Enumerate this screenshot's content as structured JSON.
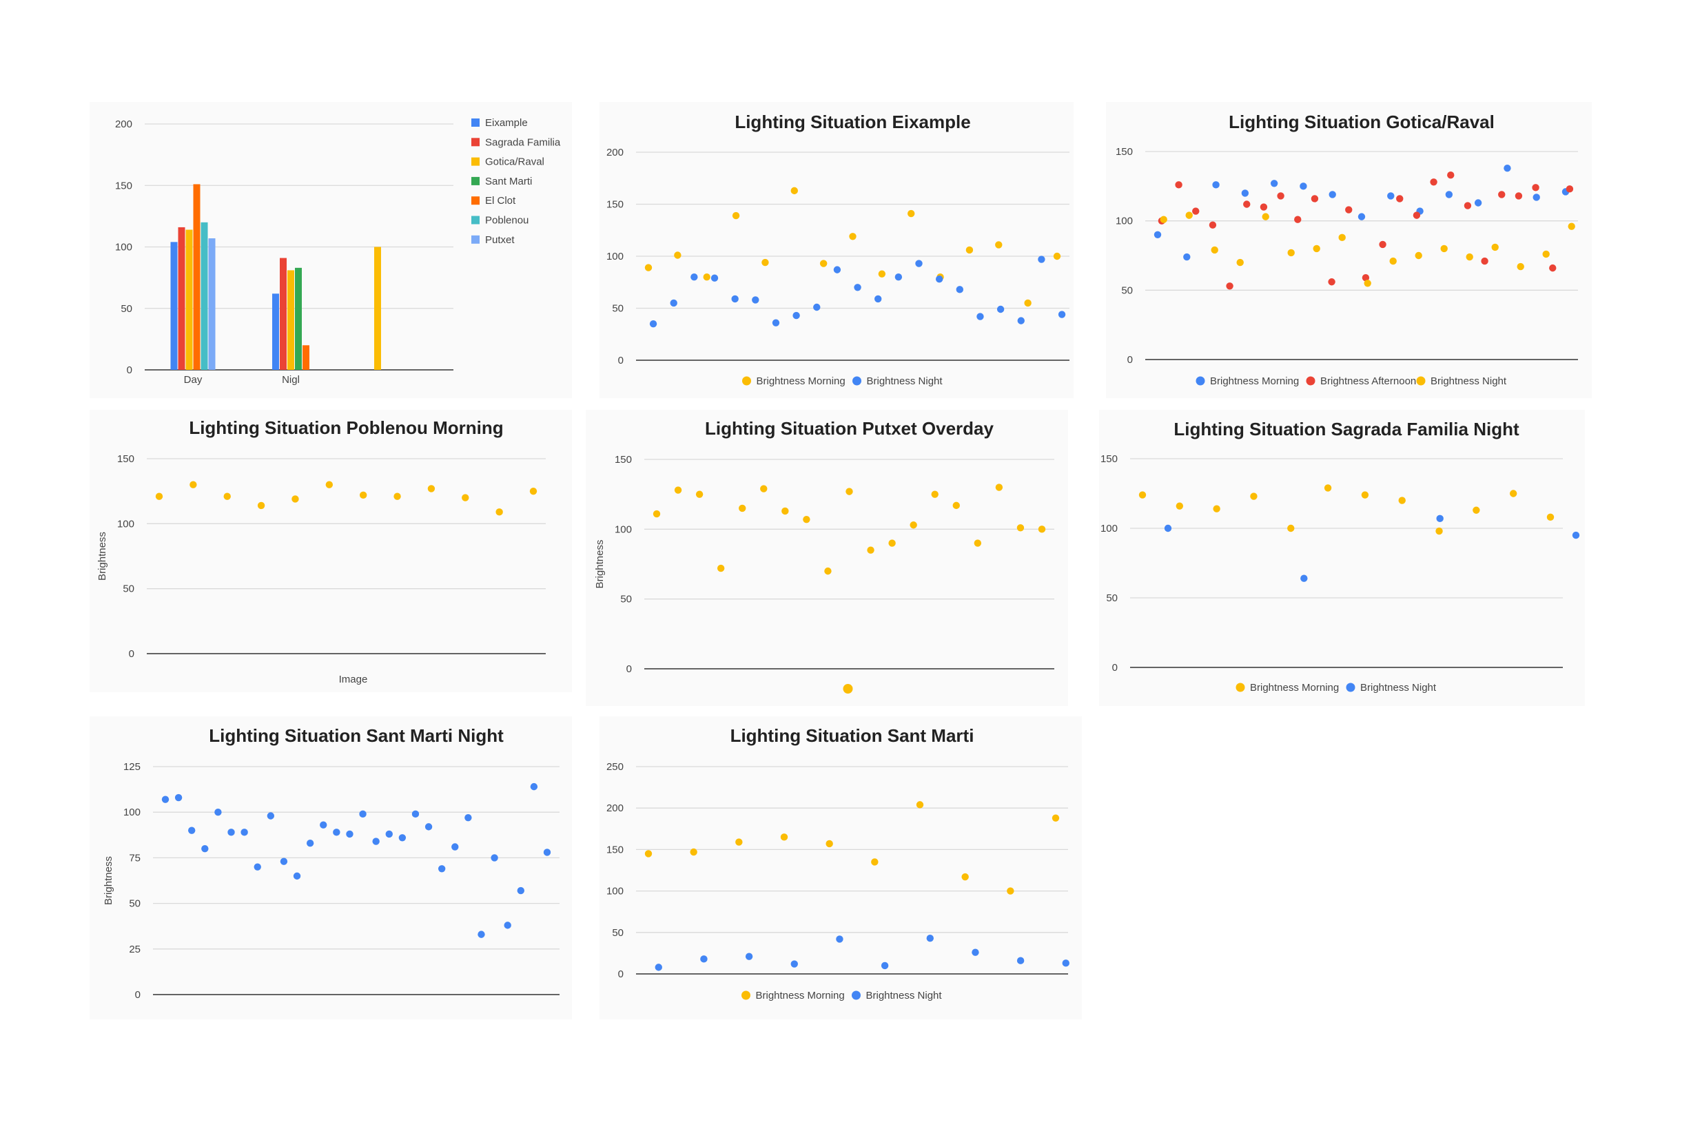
{
  "colors": {
    "blue": "#4285f4",
    "red": "#ea4335",
    "yellow": "#fbbc04",
    "green": "#34a853",
    "orange": "#ff6d01",
    "teal": "#46bdc6",
    "lightblue": "#7baaf7"
  },
  "chart_data": [
    {
      "type": "bar",
      "title": "",
      "categories": [
        "Day",
        "Nigl",
        ""
      ],
      "ylim": [
        0,
        200
      ],
      "yticks": [
        "200",
        "150",
        "100",
        "50",
        "0"
      ],
      "legend_position": "right",
      "grid": true,
      "series": [
        {
          "name": "Eixample",
          "color": "#4285f4",
          "values": [
            104,
            62,
            null
          ]
        },
        {
          "name": "Sagrada Familia",
          "color": "#ea4335",
          "values": [
            116,
            91,
            null
          ]
        },
        {
          "name": "Gotica/Raval",
          "color": "#fbbc04",
          "values": [
            114,
            81,
            100
          ]
        },
        {
          "name": "Sant Marti",
          "color": "#34a853",
          "values": [
            null,
            83,
            null
          ]
        },
        {
          "name": "El Clot",
          "color": "#ff6d01",
          "values": [
            151,
            20,
            null
          ]
        },
        {
          "name": "Poblenou",
          "color": "#46bdc6",
          "values": [
            120,
            null,
            null
          ]
        },
        {
          "name": "Putxet",
          "color": "#7baaf7",
          "values": [
            107,
            null,
            null
          ]
        }
      ]
    },
    {
      "type": "scatter",
      "title": "Lighting Situation Eixample",
      "ylim": [
        0,
        200
      ],
      "yticks": [
        "200",
        "150",
        "100",
        "50",
        "0"
      ],
      "legend_position": "bottom",
      "grid": true,
      "series": [
        {
          "name": "Brightness Morning",
          "color": "#fbbc04",
          "values": [
            89,
            101,
            80,
            139,
            94,
            163,
            93,
            119,
            83,
            141,
            80,
            106,
            111,
            55,
            100
          ]
        },
        {
          "name": "Brightness Night",
          "color": "#4285f4",
          "values": [
            35,
            55,
            80,
            79,
            59,
            58,
            36,
            43,
            51,
            87,
            70,
            59,
            80,
            93,
            78,
            68,
            42,
            49,
            38,
            97,
            44
          ]
        }
      ]
    },
    {
      "type": "scatter",
      "title": "Lighting Situation Gotica/Raval",
      "ylim": [
        0,
        150
      ],
      "yticks": [
        "150",
        "100",
        "50",
        "0"
      ],
      "legend_position": "bottom",
      "grid": true,
      "series": [
        {
          "name": "Brightness Morning",
          "color": "#4285f4",
          "values": [
            90,
            74,
            126,
            120,
            127,
            125,
            119,
            103,
            118,
            107,
            119,
            113,
            138,
            117,
            121
          ]
        },
        {
          "name": "Brightness Afternoon",
          "color": "#ea4335",
          "values": [
            100,
            126,
            107,
            97,
            53,
            112,
            110,
            118,
            101,
            116,
            56,
            108,
            59,
            83,
            116,
            104,
            128,
            133,
            111,
            71,
            119,
            118,
            124,
            66,
            123
          ]
        },
        {
          "name": "Brightness Night",
          "color": "#fbbc04",
          "values": [
            101,
            104,
            79,
            70,
            103,
            77,
            80,
            88,
            55,
            71,
            75,
            80,
            74,
            81,
            67,
            76,
            96
          ]
        }
      ]
    },
    {
      "type": "scatter",
      "title": "Lighting Situation Poblenou Morning",
      "xlabel": "Image",
      "ylabel": "Brightness",
      "ylim": [
        0,
        150
      ],
      "yticks": [
        "150",
        "100",
        "50",
        "0"
      ],
      "legend_position": "none",
      "grid": true,
      "series": [
        {
          "name": "",
          "color": "#fbbc04",
          "values": [
            121,
            130,
            121,
            114,
            119,
            130,
            122,
            121,
            127,
            120,
            109,
            125
          ]
        }
      ]
    },
    {
      "type": "scatter",
      "title": "Lighting Situation Putxet Overday",
      "ylabel": "Brightness",
      "ylim": [
        0,
        150
      ],
      "yticks": [
        "150",
        "100",
        "50",
        "0"
      ],
      "legend_position": "bottom",
      "grid": true,
      "series": [
        {
          "name": "",
          "color": "#fbbc04",
          "values": [
            111,
            128,
            125,
            72,
            115,
            129,
            113,
            107,
            70,
            127,
            85,
            90,
            103,
            125,
            117,
            90,
            130,
            101,
            100
          ]
        }
      ]
    },
    {
      "type": "scatter",
      "title": "Lighting Situation Sagrada Familia Night",
      "ylim": [
        0,
        150
      ],
      "yticks": [
        "150",
        "100",
        "50",
        "0"
      ],
      "legend_position": "bottom",
      "grid": true,
      "series": [
        {
          "name": "Brightness Morning",
          "color": "#fbbc04",
          "values": [
            124,
            116,
            114,
            123,
            100,
            129,
            124,
            120,
            98,
            113,
            125,
            108
          ]
        },
        {
          "name": "Brightness Night",
          "color": "#4285f4",
          "values": [
            100,
            64,
            107,
            95
          ]
        }
      ]
    },
    {
      "type": "scatter",
      "title": "Lighting Situation Sant Marti Night",
      "ylabel": "Brightness",
      "ylim": [
        0,
        125
      ],
      "yticks": [
        "125",
        "100",
        "75",
        "50",
        "25",
        "0"
      ],
      "legend_position": "none",
      "grid": true,
      "series": [
        {
          "name": "",
          "color": "#4285f4",
          "values": [
            107,
            108,
            90,
            80,
            100,
            89,
            89,
            70,
            98,
            73,
            65,
            83,
            93,
            89,
            88,
            99,
            84,
            88,
            86,
            99,
            92,
            69,
            81,
            97,
            33,
            75,
            38,
            57,
            114,
            78
          ]
        }
      ]
    },
    {
      "type": "scatter",
      "title": "Lighting Situation Sant Marti",
      "ylim": [
        0,
        250
      ],
      "yticks": [
        "250",
        "200",
        "150",
        "100",
        "50",
        "0"
      ],
      "legend_position": "bottom",
      "grid": true,
      "series": [
        {
          "name": "Brightness Morning",
          "color": "#fbbc04",
          "values": [
            145,
            147,
            159,
            165,
            157,
            135,
            204,
            117,
            100,
            188
          ]
        },
        {
          "name": "Brightness Night",
          "color": "#4285f4",
          "values": [
            8,
            18,
            21,
            12,
            42,
            10,
            43,
            26,
            16,
            13
          ]
        }
      ]
    }
  ]
}
